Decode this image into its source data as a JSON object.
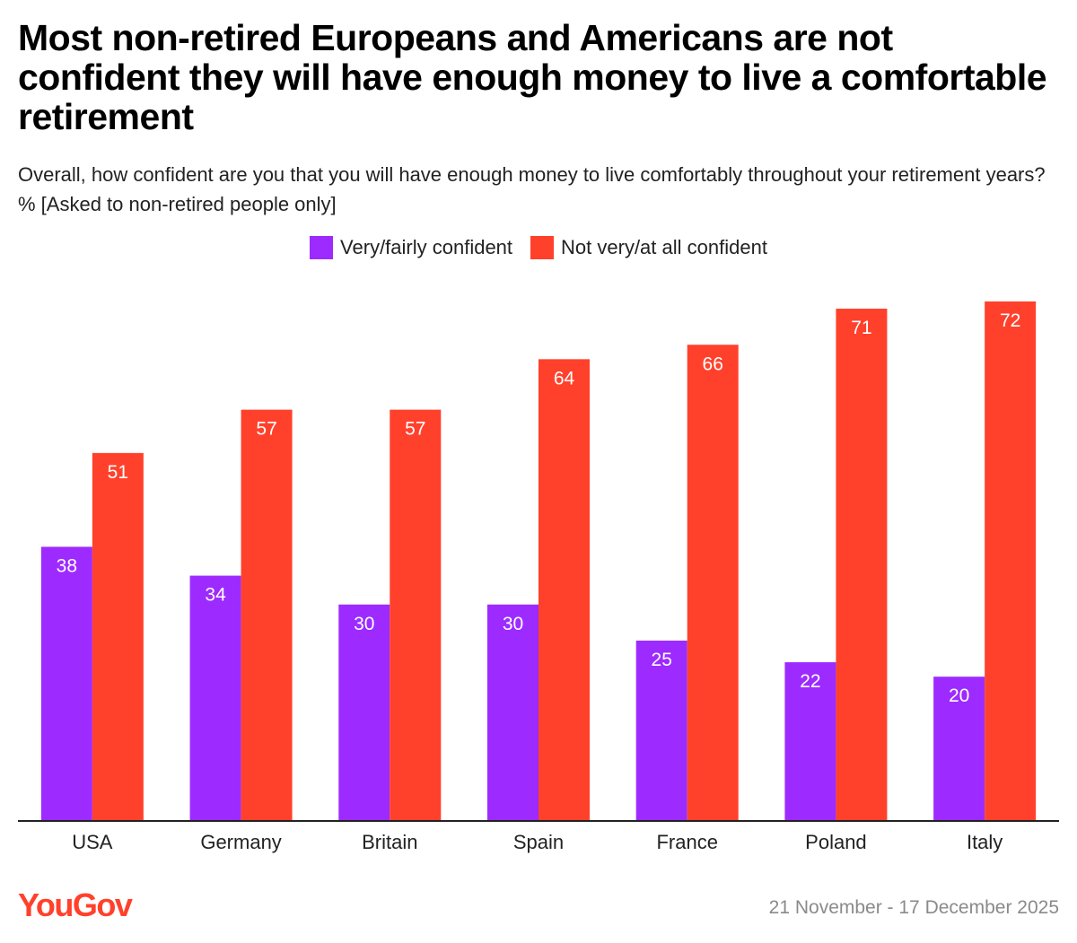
{
  "title": "Most non-retired Europeans and Americans are not confident they will have enough money to live a comfortable retirement",
  "subtitle": "Overall, how confident are you that you will have enough money to live comfortably throughout your retirement years? % [Asked to non-retired people only]",
  "legend": [
    {
      "label": "Very/fairly confident",
      "color": "#9d2bff"
    },
    {
      "label": "Not very/at all confident",
      "color": "#ff412c"
    }
  ],
  "footer": {
    "brand": "YouGov",
    "date": "21 November - 17 December 2025"
  },
  "chart_data": {
    "type": "bar",
    "title": "Most non-retired Europeans and Americans are not confident they will have enough money to live a comfortable retirement",
    "xlabel": "",
    "ylabel": "",
    "ylim": [
      0,
      72
    ],
    "grid": false,
    "legend_position": "top-center",
    "categories": [
      "USA",
      "Germany",
      "Britain",
      "Spain",
      "France",
      "Poland",
      "Italy"
    ],
    "series": [
      {
        "name": "Very/fairly confident",
        "color": "#9d2bff",
        "values": [
          38,
          34,
          30,
          30,
          25,
          22,
          20
        ]
      },
      {
        "name": "Not very/at all confident",
        "color": "#ff412c",
        "values": [
          51,
          57,
          57,
          64,
          66,
          71,
          72
        ]
      }
    ]
  }
}
